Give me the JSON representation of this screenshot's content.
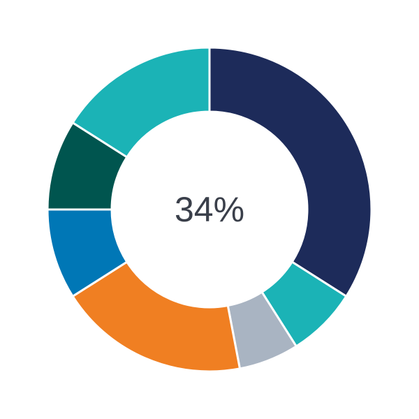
{
  "chart_data": {
    "type": "pie",
    "subtype": "donut",
    "center_label": "34%",
    "start": "top",
    "direction": "clockwise",
    "values": [
      34,
      7,
      6,
      19,
      9,
      9,
      16
    ],
    "colors": [
      "#1d2b5a",
      "#1bb3b6",
      "#a9b4c2",
      "#f07f22",
      "#0077b6",
      "#00554f",
      "#1bb3b6"
    ],
    "legend": "none"
  }
}
